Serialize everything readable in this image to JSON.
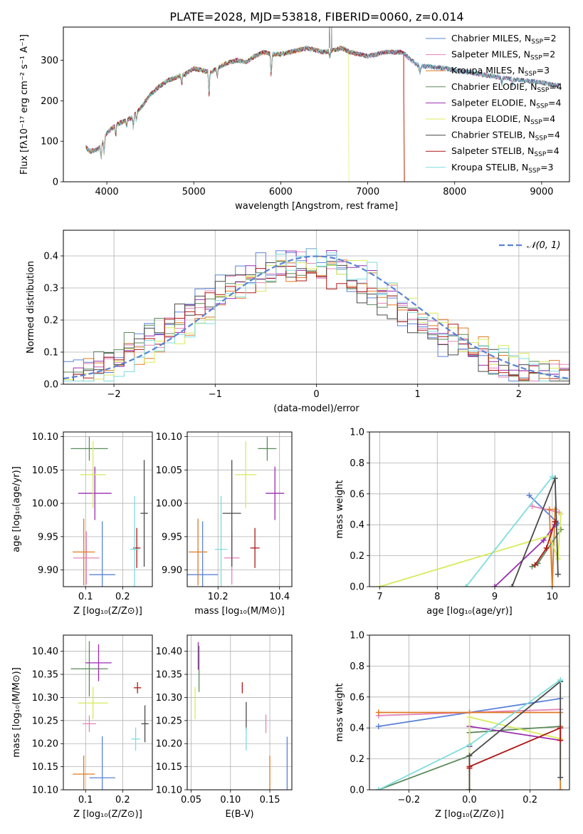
{
  "figure_title": "PLATE=2028, MJD=53818, FIBERID=0060, z=0.014",
  "models": [
    {
      "label": "Chabrier MILES, N",
      "sub": "SSP",
      "post": "=2",
      "color": "#5b83d6"
    },
    {
      "label": "Salpeter MILES, N",
      "sub": "SSP",
      "post": "=2",
      "color": "#e583b8"
    },
    {
      "label": "Kroupa MILES, N",
      "sub": "SSP",
      "post": "=3",
      "color": "#e07a22"
    },
    {
      "label": "Chabrier ELODIE, N",
      "sub": "SSP",
      "post": "=4",
      "color": "#5a8a5a"
    },
    {
      "label": "Salpeter ELODIE, N",
      "sub": "SSP",
      "post": "=4",
      "color": "#9a2db0"
    },
    {
      "label": "Kroupa ELODIE, N",
      "sub": "SSP",
      "post": "=4",
      "color": "#d8ea5a"
    },
    {
      "label": "Chabrier STELIB, N",
      "sub": "SSP",
      "post": "=4",
      "color": "#4a4a4a"
    },
    {
      "label": "Salpeter STELIB, N",
      "sub": "SSP",
      "post": "=4",
      "color": "#b01818"
    },
    {
      "label": "Kroupa STELIB, N",
      "sub": "SSP",
      "post": "=3",
      "color": "#7fdcdc"
    }
  ],
  "chart_data": [
    {
      "id": "spectrum",
      "type": "line",
      "xlabel": "wavelength [Angstrom, rest frame]",
      "ylabel": "Flux [fλ10⁻¹⁷ erg cm⁻² s⁻¹ A⁻¹]",
      "xlim": [
        3500,
        9320
      ],
      "ylim": [
        0,
        382
      ],
      "xticks": [
        4000,
        5000,
        6000,
        7000,
        8000,
        9000
      ],
      "yticks": [
        0,
        100,
        200,
        300
      ],
      "continuum_x": [
        3760,
        3800,
        3900,
        4000,
        4100,
        4200,
        4300,
        4400,
        4500,
        4600,
        4700,
        4800,
        4900,
        5000,
        5100,
        5200,
        5300,
        5400,
        5500,
        5600,
        5700,
        5800,
        5900,
        6000,
        6100,
        6200,
        6300,
        6400,
        6500,
        6600,
        6700,
        6800,
        6900,
        7000,
        7100,
        7200,
        7300,
        7400,
        7500,
        7600,
        7700,
        7800,
        7900,
        8000,
        8100,
        8200,
        8300,
        8400,
        8500,
        8600,
        8700,
        8800,
        8900,
        9000,
        9100,
        9200
      ],
      "continuum_y": [
        85,
        75,
        80,
        120,
        140,
        150,
        160,
        185,
        215,
        235,
        250,
        258,
        265,
        280,
        275,
        270,
        285,
        295,
        300,
        295,
        310,
        320,
        315,
        315,
        320,
        325,
        330,
        325,
        320,
        325,
        330,
        320,
        315,
        310,
        315,
        320,
        320,
        320,
        300,
        285,
        285,
        282,
        280,
        275,
        272,
        270,
        265,
        262,
        258,
        255,
        252,
        250,
        248,
        245,
        240,
        238
      ],
      "dips": [
        [
          3934,
          40
        ],
        [
          3969,
          40
        ],
        [
          4102,
          30
        ],
        [
          4227,
          20
        ],
        [
          4305,
          30
        ],
        [
          4340,
          25
        ],
        [
          4861,
          25
        ],
        [
          5175,
          60
        ],
        [
          5270,
          25
        ],
        [
          5890,
          60
        ],
        [
          6563,
          20
        ],
        [
          7600,
          20
        ],
        [
          8542,
          20
        ],
        [
          8662,
          20
        ]
      ],
      "truncations": [
        [
          2,
          7410
        ],
        [
          5,
          6780
        ],
        [
          7,
          7420
        ]
      ]
    },
    {
      "id": "residuals",
      "type": "histogram",
      "xlabel": "(data-model)/error",
      "ylabel": "Normed distribution",
      "xlim": [
        -2.5,
        2.5
      ],
      "ylim": [
        0,
        0.48
      ],
      "xticks": [
        -2,
        -1,
        0,
        1,
        2
      ],
      "yticks": [
        0.0,
        0.1,
        0.2,
        0.3,
        0.4
      ],
      "reference": {
        "label": "𝒩(0, 1)",
        "mean": 0,
        "sigma": 1,
        "color": "#5b83d6"
      },
      "bin_width": 0.1,
      "bin_start": -2.5
    },
    {
      "id": "age_vs_Z",
      "type": "scatter",
      "xlabel": "Z [log₁₀(Z/Z⊙)]",
      "ylabel": "age  [log₁₀(age/yr)]",
      "xlim": [
        0.04,
        0.28
      ],
      "ylim": [
        9.875,
        10.107
      ],
      "xticks": [
        0.1,
        0.2
      ],
      "yticks": [
        9.9,
        9.95,
        10.0,
        10.05,
        10.1
      ],
      "points": [
        {
          "x": 0.145,
          "y": 9.893,
          "xerr": 0.035,
          "yerr": 0.08
        },
        {
          "x": 0.102,
          "y": 9.918,
          "xerr": 0.035,
          "yerr": 0.04
        },
        {
          "x": 0.095,
          "y": 9.927,
          "xerr": 0.03,
          "yerr": 0.05
        },
        {
          "x": 0.11,
          "y": 10.082,
          "xerr": 0.05,
          "yerr": 0.018
        },
        {
          "x": 0.125,
          "y": 10.015,
          "xerr": 0.045,
          "yerr": 0.04
        },
        {
          "x": 0.12,
          "y": 10.043,
          "xerr": 0.035,
          "yerr": 0.05
        },
        {
          "x": 0.258,
          "y": 9.985,
          "xerr": 0.01,
          "yerr": 0.08
        },
        {
          "x": 0.238,
          "y": 9.933,
          "xerr": 0.01,
          "yerr": 0.03
        },
        {
          "x": 0.232,
          "y": 9.931,
          "xerr": 0.012,
          "yerr": 0.08
        }
      ]
    },
    {
      "id": "age_vs_mass",
      "type": "scatter",
      "xlabel": "mass [log₁₀(M/M⊙)]",
      "ylabel": "",
      "xlim": [
        10.1,
        10.44
      ],
      "ylim": [
        9.875,
        10.107
      ],
      "xticks": [
        10.2,
        10.4
      ],
      "yticks": [
        9.9,
        9.95,
        10.0,
        10.05,
        10.1
      ],
      "points": [
        {
          "x": 10.15,
          "y": 9.893,
          "xerr": 0.05,
          "yerr": 0.08
        },
        {
          "x": 10.245,
          "y": 9.918,
          "xerr": 0.025,
          "yerr": 0.04
        },
        {
          "x": 10.135,
          "y": 9.927,
          "xerr": 0.03,
          "yerr": 0.05
        },
        {
          "x": 10.36,
          "y": 10.082,
          "xerr": 0.03,
          "yerr": 0.018
        },
        {
          "x": 10.385,
          "y": 10.015,
          "xerr": 0.03,
          "yerr": 0.04
        },
        {
          "x": 10.29,
          "y": 10.043,
          "xerr": 0.035,
          "yerr": 0.05
        },
        {
          "x": 10.245,
          "y": 9.985,
          "xerr": 0.03,
          "yerr": 0.08
        },
        {
          "x": 10.32,
          "y": 9.933,
          "xerr": 0.015,
          "yerr": 0.03
        },
        {
          "x": 10.21,
          "y": 9.931,
          "xerr": 0.02,
          "yerr": 0.08
        }
      ]
    },
    {
      "id": "weight_vs_age",
      "type": "line",
      "xlabel": "age  [log₁₀(age/yr)]",
      "ylabel": "mass weight",
      "xlim": [
        6.82,
        10.3
      ],
      "ylim": [
        0,
        1
      ],
      "xticks": [
        7,
        8,
        9,
        10
      ],
      "yticks": [
        0.0,
        0.2,
        0.4,
        0.6,
        0.8,
        1.0
      ],
      "series": [
        {
          "x": [
            9.6,
            10.1
          ],
          "y": [
            0.59,
            0.41
          ]
        },
        {
          "x": [
            9.65,
            10.12
          ],
          "y": [
            0.52,
            0.48
          ]
        },
        {
          "x": [
            9.95,
            10.0,
            10.05
          ],
          "y": [
            0.5,
            0.0,
            0.5
          ]
        },
        {
          "x": [
            9.65,
            9.75,
            10.15
          ],
          "y": [
            0.13,
            0.15,
            0.37
          ]
        },
        {
          "x": [
            9.0,
            9.85,
            10.05
          ],
          "y": [
            0.0,
            0.3,
            0.4
          ]
        },
        {
          "x": [
            7.0,
            9.95,
            10.1,
            10.15
          ],
          "y": [
            0.0,
            0.33,
            0.18,
            0.47
          ]
        },
        {
          "x": [
            9.3,
            10.05,
            10.1
          ],
          "y": [
            0.0,
            0.7,
            0.08
          ]
        },
        {
          "x": [
            9.7,
            9.9,
            10.05
          ],
          "y": [
            0.14,
            0.25,
            0.42
          ]
        },
        {
          "x": [
            8.5,
            10.0
          ],
          "y": [
            0.0,
            0.71
          ]
        }
      ]
    },
    {
      "id": "mass_vs_Z",
      "type": "scatter",
      "xlabel": "Z [log₁₀(Z/Z⊙)]",
      "ylabel": "mass [log₁₀(M/M⊙)]",
      "xlim": [
        0.04,
        0.28
      ],
      "ylim": [
        10.1,
        10.435
      ],
      "xticks": [
        0.1,
        0.2
      ],
      "yticks": [
        10.1,
        10.15,
        10.2,
        10.25,
        10.3,
        10.35,
        10.4
      ],
      "points": [
        {
          "x": 0.145,
          "y": 10.126,
          "xerr": 0.035,
          "yerr": 0.09
        },
        {
          "x": 0.11,
          "y": 10.243,
          "xerr": 0.018,
          "yerr": 0.018
        },
        {
          "x": 0.095,
          "y": 10.134,
          "xerr": 0.03,
          "yerr": 0.04
        },
        {
          "x": 0.11,
          "y": 10.362,
          "xerr": 0.05,
          "yerr": 0.06
        },
        {
          "x": 0.135,
          "y": 10.375,
          "xerr": 0.035,
          "yerr": 0.04
        },
        {
          "x": 0.12,
          "y": 10.288,
          "xerr": 0.04,
          "yerr": 0.035
        },
        {
          "x": 0.26,
          "y": 10.243,
          "xerr": 0.01,
          "yerr": 0.04
        },
        {
          "x": 0.24,
          "y": 10.321,
          "xerr": 0.01,
          "yerr": 0.012
        },
        {
          "x": 0.235,
          "y": 10.21,
          "xerr": 0.012,
          "yerr": 0.025
        }
      ]
    },
    {
      "id": "mass_vs_EBV",
      "type": "scatter",
      "xlabel": "E(B-V)",
      "ylabel": "",
      "xlim": [
        0.045,
        0.178
      ],
      "ylim": [
        10.1,
        10.435
      ],
      "xticks": [
        0.05,
        0.1,
        0.15
      ],
      "yticks": [
        10.1,
        10.15,
        10.2,
        10.25,
        10.3,
        10.35,
        10.4
      ],
      "points": [
        {
          "x": 0.172,
          "y": 10.15,
          "xerr": 0,
          "yerr": 0.065
        },
        {
          "x": 0.145,
          "y": 10.243,
          "xerr": 0,
          "yerr": 0.02
        },
        {
          "x": 0.15,
          "y": 10.134,
          "xerr": 0,
          "yerr": 0.04
        },
        {
          "x": 0.06,
          "y": 10.362,
          "xerr": 0,
          "yerr": 0.05
        },
        {
          "x": 0.059,
          "y": 10.39,
          "xerr": 0,
          "yerr": 0.03
        },
        {
          "x": 0.055,
          "y": 10.288,
          "xerr": 0,
          "yerr": 0.035
        },
        {
          "x": 0.12,
          "y": 10.26,
          "xerr": 0,
          "yerr": 0.03
        },
        {
          "x": 0.115,
          "y": 10.321,
          "xerr": 0,
          "yerr": 0.012
        },
        {
          "x": 0.12,
          "y": 10.21,
          "xerr": 0,
          "yerr": 0.025
        }
      ]
    },
    {
      "id": "weight_vs_Z",
      "type": "line",
      "xlabel": "Z [log₁₀(Z/Z⊙)]",
      "ylabel": "mass weight",
      "xlim": [
        -0.33,
        0.33
      ],
      "ylim": [
        0,
        1
      ],
      "xticks": [
        -0.2,
        0.0,
        0.2
      ],
      "yticks": [
        0.0,
        0.2,
        0.4,
        0.6,
        0.8,
        1.0
      ],
      "series": [
        {
          "x": [
            -0.3,
            0.3
          ],
          "y": [
            0.41,
            0.59
          ]
        },
        {
          "x": [
            -0.3,
            0.3
          ],
          "y": [
            0.48,
            0.52
          ]
        },
        {
          "x": [
            -0.3,
            0.0,
            0.3,
            0.3
          ],
          "y": [
            0.5,
            0.5,
            0.5,
            0.0
          ]
        },
        {
          "x": [
            -0.3,
            0.0,
            0.0,
            0.3
          ],
          "y": [
            0.0,
            0.22,
            0.37,
            0.41
          ]
        },
        {
          "x": [
            0.0,
            0.0,
            0.3
          ],
          "y": [
            0.28,
            0.41,
            0.32
          ]
        },
        {
          "x": [
            0.0,
            0.0,
            0.3
          ],
          "y": [
            0.0,
            0.47,
            0.33
          ]
        },
        {
          "x": [
            0.0,
            0.0,
            0.3,
            0.3
          ],
          "y": [
            0.0,
            0.22,
            0.7,
            0.08
          ]
        },
        {
          "x": [
            0.0,
            0.0,
            0.3,
            0.3
          ],
          "y": [
            0.14,
            0.15,
            0.4,
            0.32
          ]
        },
        {
          "x": [
            -0.3,
            0.0,
            0.3
          ],
          "y": [
            0.0,
            0.29,
            0.71
          ]
        }
      ]
    }
  ]
}
